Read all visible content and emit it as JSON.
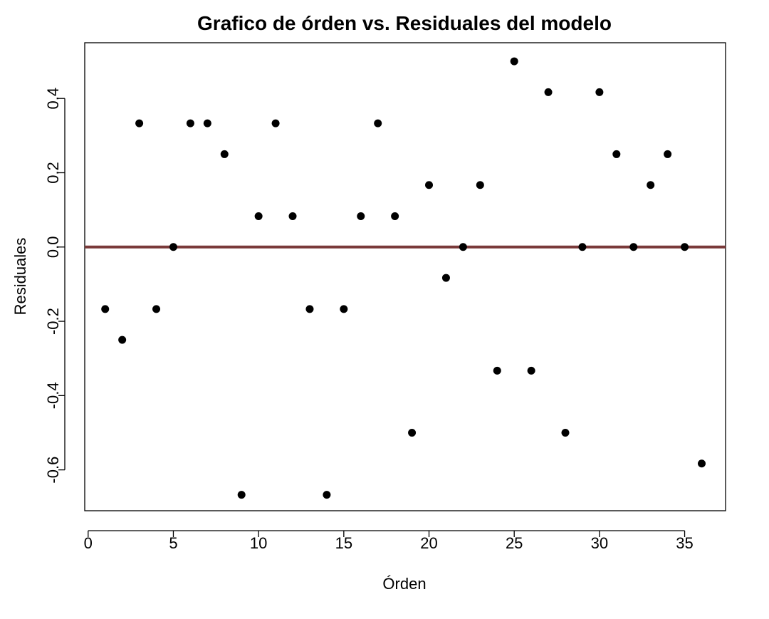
{
  "chart_data": {
    "type": "scatter",
    "title": "Grafico de órden vs. Residuales del modelo",
    "xlabel": "Órden",
    "ylabel": "Residuales",
    "xlim": [
      -0.2,
      37.4
    ],
    "ylim": [
      -0.71,
      0.55
    ],
    "x_ticks": [
      0,
      5,
      10,
      15,
      20,
      25,
      30,
      35
    ],
    "x_tick_labels": [
      "0",
      "5",
      "10",
      "15",
      "20",
      "25",
      "30",
      "35"
    ],
    "y_ticks": [
      -0.6,
      -0.4,
      -0.2,
      0.0,
      0.2,
      0.4
    ],
    "y_tick_labels": [
      "-0.6",
      "-0.4",
      "-0.2",
      "0.0",
      "0.2",
      "0.4"
    ],
    "grid": false,
    "reference_line": {
      "y": 0,
      "color": "#7a3a3a"
    },
    "point_color": "#000000",
    "x": [
      1,
      2,
      3,
      4,
      5,
      6,
      7,
      8,
      9,
      10,
      11,
      12,
      13,
      14,
      15,
      16,
      17,
      18,
      19,
      20,
      21,
      22,
      23,
      24,
      25,
      26,
      27,
      28,
      29,
      30,
      31,
      32,
      33,
      34,
      35,
      36
    ],
    "y": [
      -0.167,
      -0.25,
      0.333,
      -0.167,
      0.0,
      0.333,
      0.333,
      0.25,
      -0.667,
      0.083,
      0.333,
      0.083,
      -0.167,
      -0.667,
      -0.167,
      0.083,
      0.333,
      0.083,
      -0.5,
      0.167,
      -0.083,
      0.0,
      0.167,
      -0.333,
      0.5,
      -0.333,
      0.417,
      -0.5,
      0.0,
      0.417,
      0.25,
      0.0,
      0.167,
      0.25,
      0.0,
      -0.583
    ]
  }
}
